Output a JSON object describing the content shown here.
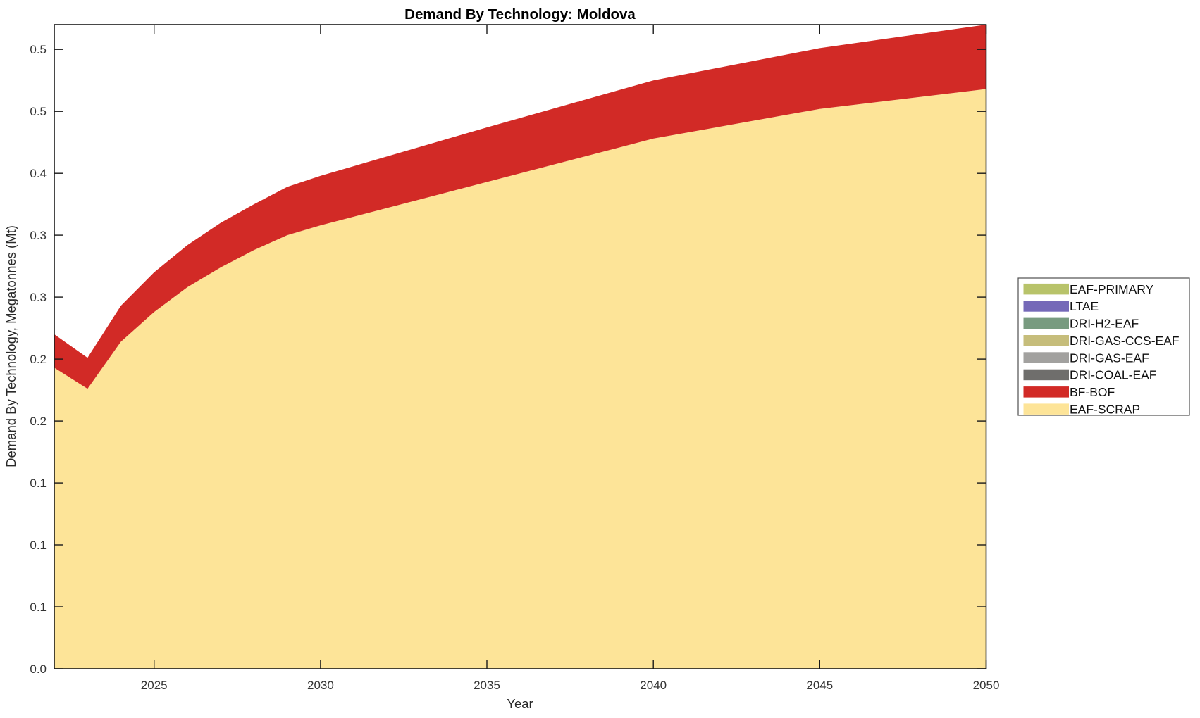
{
  "chart_data": {
    "type": "area",
    "stacked": true,
    "title": "Demand By Technology: Moldova",
    "xlabel": "Year",
    "ylabel": "Demand By Technology, Megatonnes (Mt)",
    "xlim": [
      2022,
      2050
    ],
    "ylim": [
      0,
      0.52
    ],
    "grid": false,
    "legend_position": "outside-right",
    "axis_color": "#1a1a1a",
    "x": [
      2022,
      2023,
      2024,
      2025,
      2026,
      2027,
      2028,
      2029,
      2030,
      2035,
      2040,
      2045,
      2050
    ],
    "series": [
      {
        "name": "EAF-SCRAP",
        "color": "#fde498",
        "values": [
          0.243,
          0.226,
          0.264,
          0.288,
          0.308,
          0.324,
          0.338,
          0.35,
          0.358,
          0.393,
          0.428,
          0.452,
          0.468
        ]
      },
      {
        "name": "BF-BOF",
        "color": "#d22a26",
        "values": [
          0.027,
          0.025,
          0.029,
          0.032,
          0.034,
          0.036,
          0.037,
          0.039,
          0.04,
          0.044,
          0.047,
          0.049,
          0.052
        ]
      },
      {
        "name": "DRI-COAL-EAF",
        "color": "#6f6e6c",
        "values": [
          0,
          0,
          0,
          0,
          0,
          0,
          0,
          0,
          0,
          0,
          0,
          0,
          0
        ]
      },
      {
        "name": "DRI-GAS-EAF",
        "color": "#a2a19f",
        "values": [
          0,
          0,
          0,
          0,
          0,
          0,
          0,
          0,
          0,
          0,
          0,
          0,
          0
        ]
      },
      {
        "name": "DRI-GAS-CCS-EAF",
        "color": "#c6bd7b",
        "values": [
          0,
          0,
          0,
          0,
          0,
          0,
          0,
          0,
          0,
          0,
          0,
          0,
          0
        ]
      },
      {
        "name": "DRI-H2-EAF",
        "color": "#789b80",
        "values": [
          0,
          0,
          0,
          0,
          0,
          0,
          0,
          0,
          0,
          0,
          0,
          0,
          0
        ]
      },
      {
        "name": "LTAE",
        "color": "#7569b8",
        "values": [
          0,
          0,
          0,
          0,
          0,
          0,
          0,
          0,
          0,
          0,
          0,
          0,
          0
        ]
      },
      {
        "name": "EAF-PRIMARY",
        "color": "#b8c36a",
        "values": [
          0,
          0,
          0,
          0,
          0,
          0,
          0,
          0,
          0,
          0,
          0,
          0,
          0
        ]
      }
    ],
    "xticks": {
      "values": [
        2025,
        2030,
        2035,
        2040,
        2045,
        2050
      ],
      "labels": [
        "2025",
        "2030",
        "2035",
        "2040",
        "2045",
        "2050"
      ]
    },
    "yticks": {
      "values": [
        0,
        0.05,
        0.1,
        0.15,
        0.2,
        0.25,
        0.3,
        0.35,
        0.4,
        0.45,
        0.5
      ],
      "labels": [
        "0.0",
        "0.1",
        "0.1",
        "0.1",
        "0.2",
        "0.2",
        "0.3",
        "0.3",
        "0.4",
        "0.5",
        "0.5"
      ]
    }
  }
}
